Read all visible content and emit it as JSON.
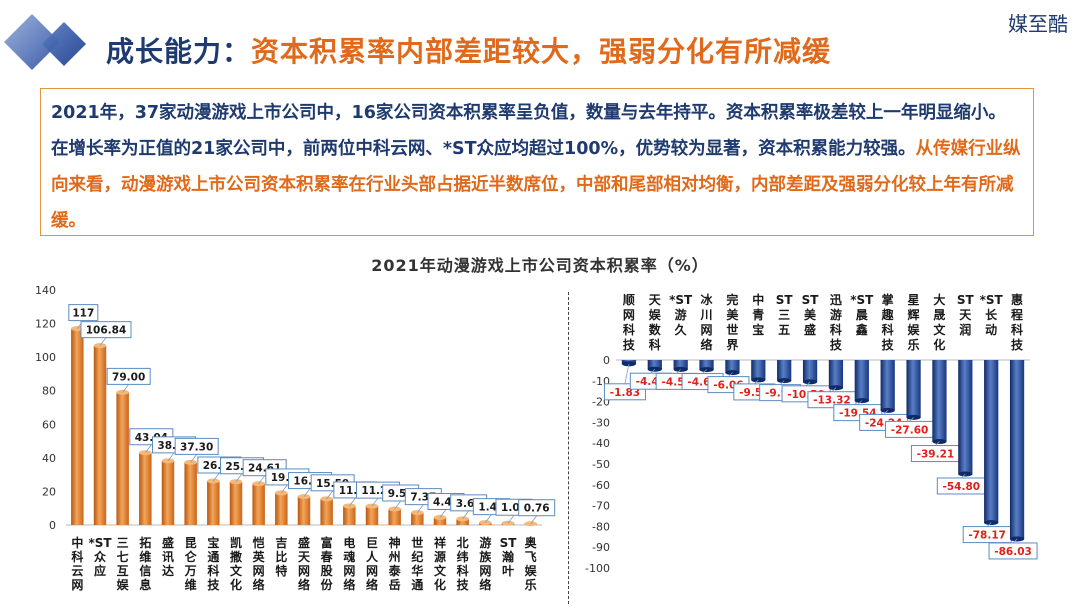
{
  "brand": "媒至酷",
  "headline": {
    "lead": "成长能力",
    "separator": "：",
    "main": "资本积累率内部差距较大，强弱分化有所减缓"
  },
  "summary": {
    "plain": "2021年，37家动漫游戏上市公司中，16家公司资本积累率呈负值，数量与去年持平。资本积累率极差较上一年明显缩小。在增长率为正值的21家公司中，前两位中科云网、*ST众应均超过100%，优势较为显著，资本积累能力较强。",
    "highlight": "从传媒行业纵向来看，动漫游戏上市公司资本积累率在行业头部占据近半数席位，中部和尾部相对均衡，内部差距及强弱分化较上年有所减缓。"
  },
  "colors": {
    "title_navy": "#1f3a6e",
    "accent_orange": "#e06a1b",
    "bar_orange": "#e8852c",
    "bar_blue": "#1c3f8c",
    "negative_label": "#e0201a"
  },
  "chart_data": [
    {
      "type": "bar",
      "title": "2021年动漫游戏上市公司资本积累率（%）",
      "categories": [
        "中科云网",
        "*ST众应",
        "三七互娱",
        "拓维信息",
        "盛讯达",
        "昆仑万维",
        "宝通科技",
        "凯撒文化",
        "恺英网络",
        "吉比特",
        "盛天网络",
        "富春股份",
        "电魂网络",
        "巨人网络",
        "神州泰岳",
        "世纪华通",
        "祥源文化",
        "北纬科技",
        "游族网络",
        "ST瀚叶",
        "奥飞娱乐"
      ],
      "values": [
        117,
        106.84,
        79.0,
        43.04,
        38.21,
        37.3,
        26.22,
        25.76,
        24.61,
        19.11,
        16.93,
        15.59,
        11.35,
        11.24,
        9.54,
        7.37,
        4.47,
        3.66,
        1.41,
        1.05,
        0.76
      ],
      "value_labels": [
        "117",
        "106.84",
        "79.00",
        "43.04",
        "38.21",
        "37.30",
        "26.22",
        "25.76",
        "24.61",
        "19.11",
        "16.93",
        "15.59",
        "11.35",
        "11.24",
        "9.54",
        "7.37",
        "4.47",
        "3.66",
        "1.41",
        "1.05",
        "0.76"
      ],
      "ylim": [
        0,
        140
      ],
      "yticks": [
        0,
        20,
        40,
        60,
        80,
        100,
        120,
        140
      ],
      "grid": false,
      "legend": "none"
    },
    {
      "type": "bar",
      "categories": [
        "顺网科技",
        "天娱数科",
        "*ST游久",
        "冰川网络",
        "完美世界",
        "中青宝",
        "ST三五",
        "ST美盛",
        "迅游科技",
        "*ST晨鑫",
        "掌趣科技",
        "星辉娱乐",
        "大晟文化",
        "ST天润",
        "*ST长动",
        "惠程科技"
      ],
      "values": [
        -1.83,
        -4.42,
        -4.5,
        -4.6,
        -6.06,
        -9.58,
        -9.92,
        -10.5,
        -13.32,
        -19.54,
        -24.24,
        -27.6,
        -39.21,
        -54.8,
        -78.17,
        -86.03
      ],
      "value_labels": [
        "-1.83",
        "-4.42",
        "-4.50",
        "-4.60",
        "-6.06",
        "-9.58",
        "-9.92",
        "-10.50",
        "-13.32",
        "-19.54",
        "-24.24",
        "-27.60",
        "-39.21",
        "-54.80",
        "-78.17",
        "-86.03"
      ],
      "ylim": [
        -100,
        0
      ],
      "yticks": [
        0,
        -10,
        -20,
        -30,
        -40,
        -50,
        -60,
        -70,
        -80,
        -90,
        -100
      ],
      "grid": false,
      "legend": "none"
    }
  ]
}
